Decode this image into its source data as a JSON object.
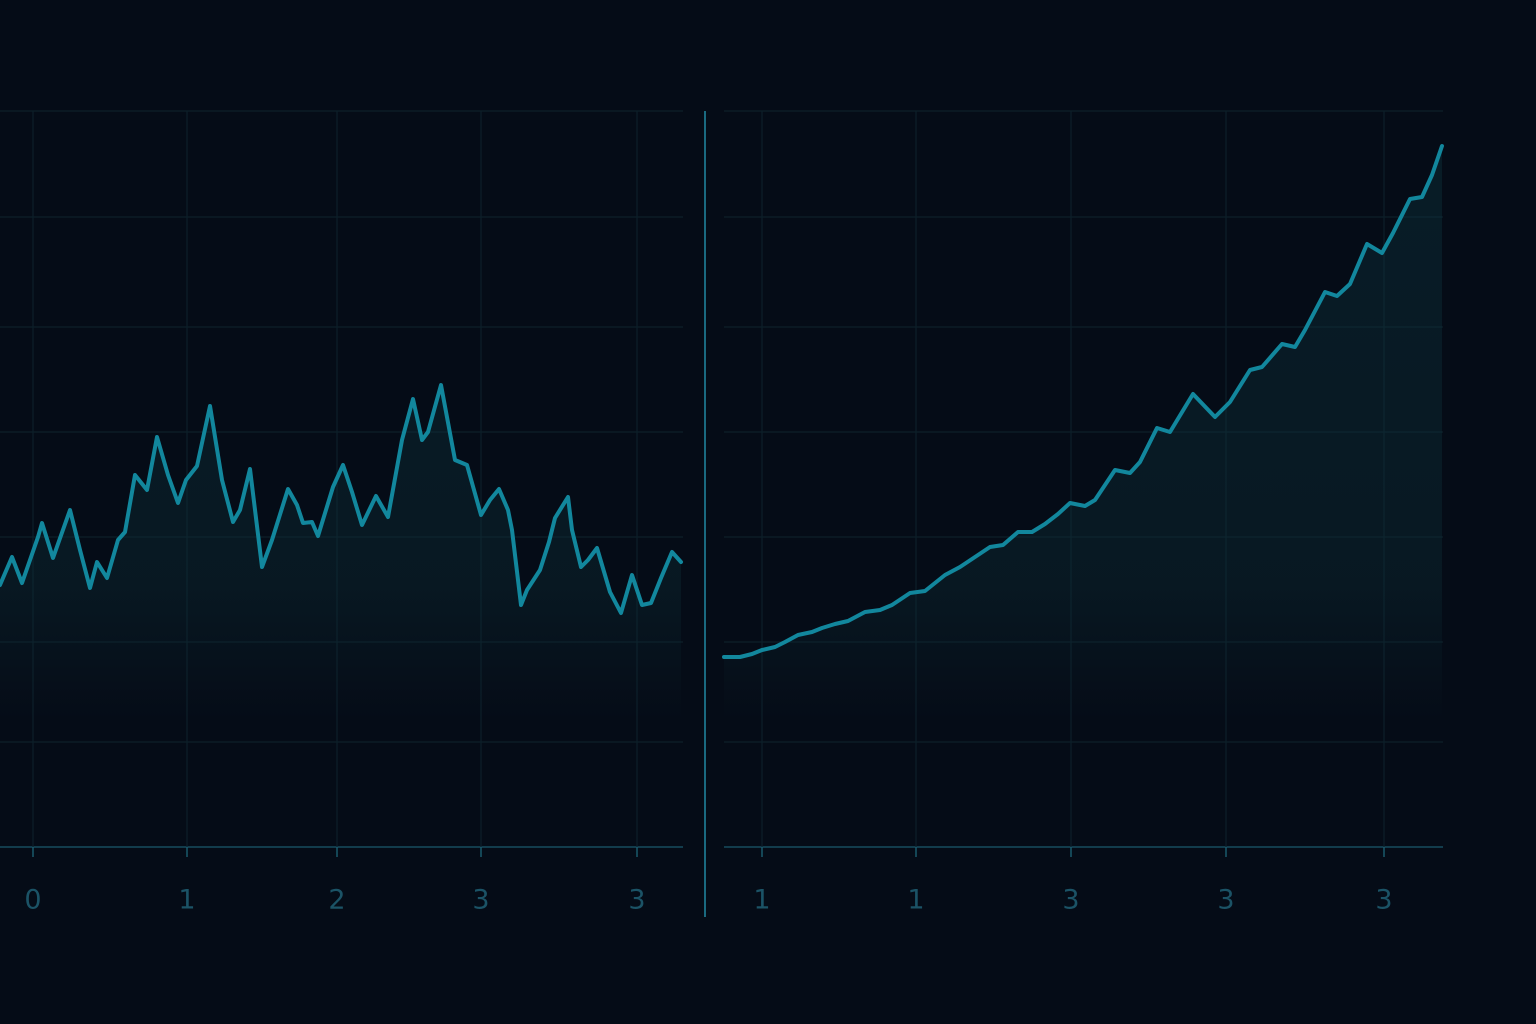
{
  "chart_data": [
    {
      "type": "line",
      "x": [
        0,
        12,
        22,
        38,
        42,
        53,
        70,
        80,
        90,
        97,
        107,
        118,
        125,
        135,
        147,
        157,
        168,
        178,
        186,
        197,
        210,
        222,
        233,
        240,
        250,
        262,
        272,
        288,
        297,
        303,
        312,
        318,
        333,
        343,
        352,
        362,
        376,
        388,
        402,
        413,
        422,
        428,
        441,
        455,
        467,
        481,
        490,
        499,
        508,
        512,
        521,
        527,
        540,
        549,
        555,
        568,
        572,
        581,
        588,
        597,
        610,
        621,
        632,
        642,
        651,
        661,
        672,
        681
      ],
      "series": [
        {
          "color": "#12879d",
          "values": [
            262,
            290,
            264,
            310,
            324,
            289,
            337,
            297,
            259,
            285,
            269,
            307,
            315,
            372,
            357,
            410,
            372,
            344,
            367,
            381,
            441,
            367,
            325,
            337,
            378,
            280,
            307,
            358,
            342,
            324,
            325,
            311,
            360,
            382,
            355,
            322,
            351,
            330,
            407,
            448,
            407,
            415,
            462,
            387,
            382,
            332,
            347,
            358,
            337,
            317,
            242,
            257,
            277,
            305,
            329,
            350,
            317,
            280,
            287,
            299,
            255,
            234,
            272,
            242,
            244,
            269,
            295,
            285
          ]
        }
      ],
      "xlim": [
        0,
        683
      ],
      "ylim": [
        0,
        736
      ],
      "xticks": [
        {
          "value": 33,
          "label": "0"
        },
        {
          "value": 187,
          "label": "1"
        },
        {
          "value": 337,
          "label": "2"
        },
        {
          "value": 481,
          "label": "3"
        },
        {
          "value": 637,
          "label": "3"
        }
      ],
      "yticks": [
        0,
        105,
        205,
        310,
        415,
        520,
        630,
        736
      ],
      "grid": true
    },
    {
      "type": "line",
      "x": [
        0,
        16,
        28,
        38,
        51,
        61,
        74,
        88,
        98,
        111,
        124,
        141,
        156,
        168,
        186,
        201,
        221,
        236,
        251,
        266,
        279,
        294,
        308,
        321,
        334,
        346,
        361,
        371,
        391,
        406,
        416,
        433,
        446,
        469,
        491,
        506,
        526,
        538,
        558,
        571,
        581,
        601,
        613,
        626,
        643,
        658,
        669,
        686,
        698,
        708,
        718
      ],
      "series": [
        {
          "color": "#12879d",
          "values": [
            190,
            190,
            193,
            197,
            200,
            205,
            212,
            215,
            219,
            223,
            226,
            235,
            237,
            242,
            254,
            256,
            272,
            280,
            290,
            300,
            302,
            315,
            315,
            323,
            333,
            344,
            341,
            347,
            377,
            374,
            385,
            419,
            415,
            453,
            430,
            445,
            477,
            480,
            503,
            500,
            517,
            555,
            551,
            563,
            603,
            594,
            614,
            648,
            650,
            672,
            701
          ]
        }
      ],
      "xlim": [
        0,
        719
      ],
      "ylim": [
        0,
        736
      ],
      "xticks": [
        {
          "value": 38,
          "label": "1"
        },
        {
          "value": 192,
          "label": "1"
        },
        {
          "value": 347,
          "label": "3"
        },
        {
          "value": 502,
          "label": "3"
        },
        {
          "value": 660,
          "label": "3"
        }
      ],
      "yticks": [
        0,
        105,
        205,
        310,
        415,
        520,
        630,
        736
      ],
      "grid": true
    }
  ]
}
